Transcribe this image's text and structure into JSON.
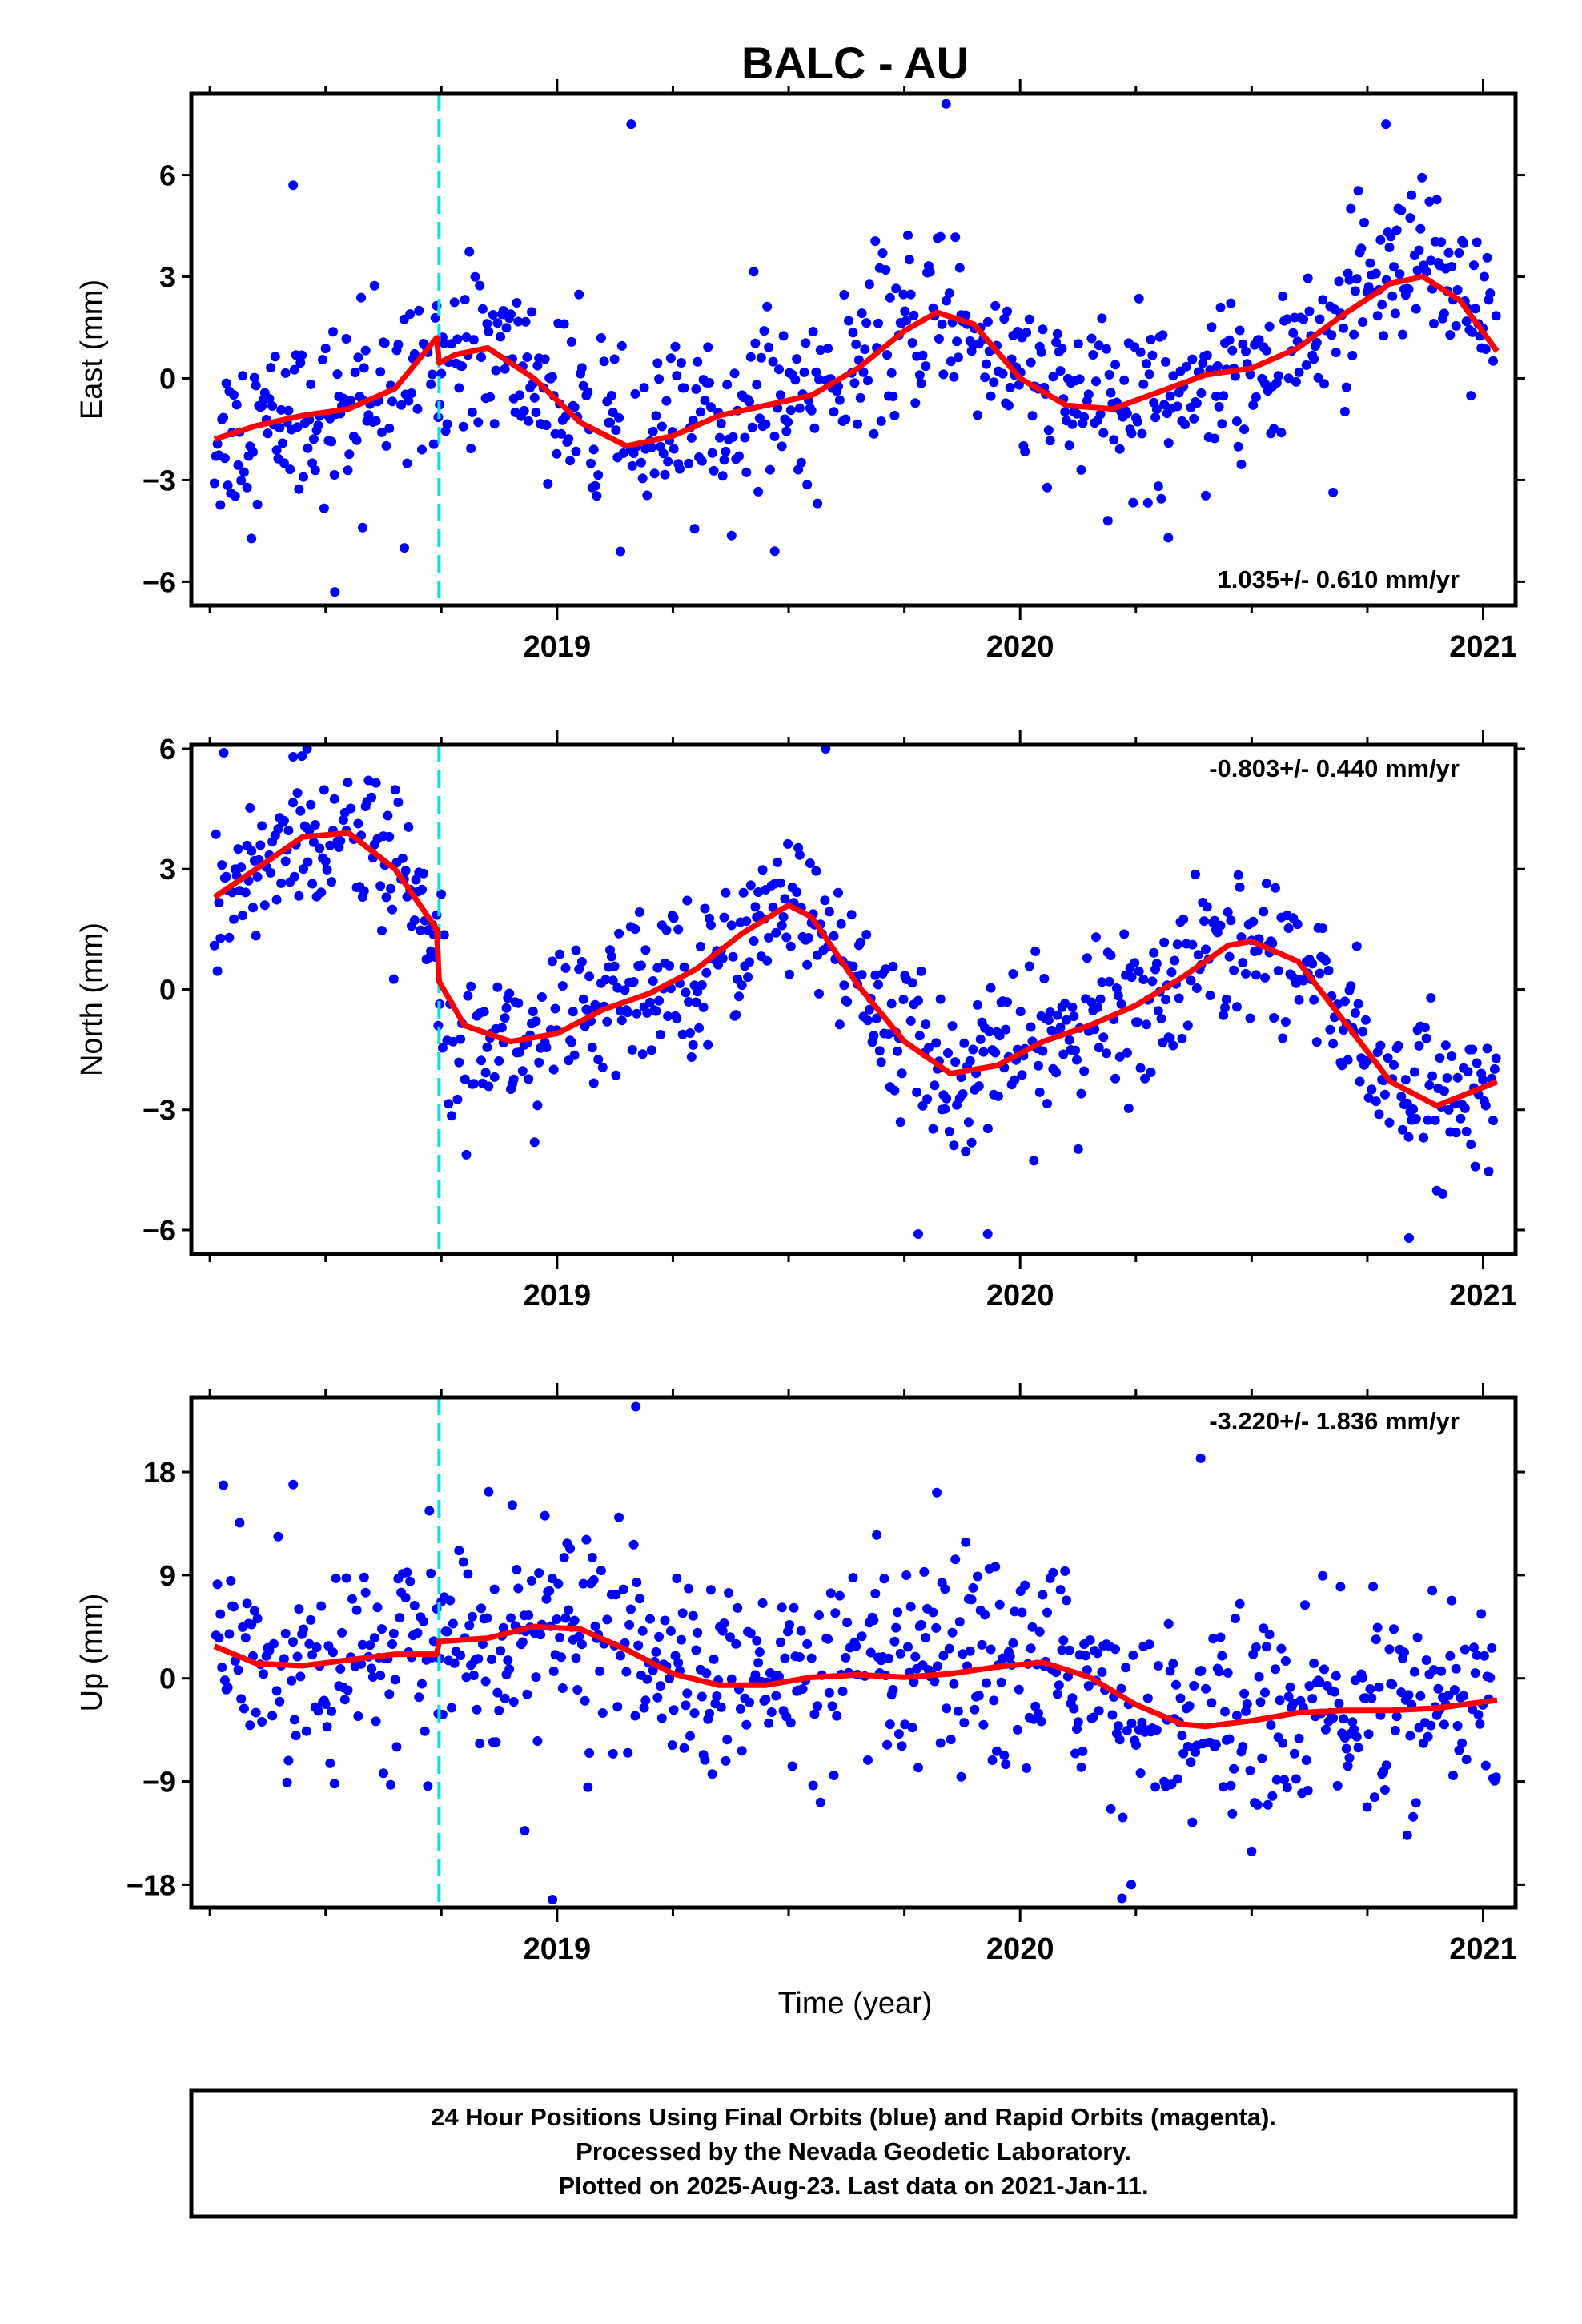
{
  "title": "BALC - AU",
  "xlabel": "Time (year)",
  "footer": {
    "line1": "24 Hour Positions Using Final Orbits (blue) and Rapid Orbits (magenta).",
    "line2": "Processed by the Nevada Geodetic Laboratory.",
    "line3": "Plotted on 2025-Aug-23. Last data on 2021-Jan-11."
  },
  "colors": {
    "points": "#0000ff",
    "fit": "#ff0000",
    "offset": "#00e5ee",
    "frame": "#000000"
  },
  "chart_data": [
    {
      "type": "scatter",
      "ylabel": "East (mm)",
      "rate": "1.035+/- 0.610 mm/yr",
      "xlim": [
        2018.21,
        2021.07
      ],
      "ylim": [
        -6.7,
        8.4
      ],
      "yticks": [
        -6,
        -3,
        0,
        3,
        6
      ],
      "xticks": [
        2019,
        2020,
        2021
      ],
      "offset_epoch": 2018.745,
      "fit": {
        "x": [
          2018.26,
          2018.35,
          2018.45,
          2018.55,
          2018.65,
          2018.74,
          2018.745,
          2018.78,
          2018.85,
          2018.95,
          2019.05,
          2019.15,
          2019.25,
          2019.35,
          2019.45,
          2019.55,
          2019.65,
          2019.75,
          2019.82,
          2019.9,
          2020.0,
          2020.1,
          2020.2,
          2020.3,
          2020.4,
          2020.5,
          2020.6,
          2020.7,
          2020.8,
          2020.87,
          2020.95,
          2021.03
        ],
        "y": [
          -1.8,
          -1.4,
          -1.1,
          -0.9,
          -0.3,
          1.2,
          0.45,
          0.7,
          0.9,
          0.0,
          -1.3,
          -2.0,
          -1.7,
          -1.1,
          -0.8,
          -0.5,
          0.3,
          1.4,
          1.95,
          1.6,
          0.0,
          -0.8,
          -0.9,
          -0.4,
          0.1,
          0.3,
          0.9,
          1.9,
          2.8,
          3.0,
          2.3,
          0.8
        ]
      },
      "points": {
        "x": [
          2018.52,
          2019.16,
          2019.84,
          2018.58,
          2019.47,
          2018.67,
          2020.32,
          2018.43,
          2020.79
        ],
        "y": [
          -6.3,
          7.5,
          8.1,
          -4.4,
          -5.1,
          -5.0,
          -4.7,
          5.7,
          7.5
        ]
      }
    },
    {
      "type": "scatter",
      "ylabel": "North (mm)",
      "rate": "-0.803+/- 0.440 mm/yr",
      "xlim": [
        2018.21,
        2021.07
      ],
      "ylim": [
        -6.6,
        6.1
      ],
      "yticks": [
        -6,
        -3,
        0,
        3,
        6
      ],
      "xticks": [
        2019,
        2020,
        2021
      ],
      "offset_epoch": 2018.745,
      "fit": {
        "x": [
          2018.26,
          2018.35,
          2018.45,
          2018.55,
          2018.65,
          2018.74,
          2018.745,
          2018.8,
          2018.9,
          2019.0,
          2019.1,
          2019.2,
          2019.3,
          2019.4,
          2019.5,
          2019.55,
          2019.65,
          2019.75,
          2019.85,
          2019.95,
          2020.05,
          2020.15,
          2020.25,
          2020.35,
          2020.45,
          2020.5,
          2020.6,
          2020.7,
          2020.8,
          2020.9,
          2021.03
        ],
        "y": [
          2.3,
          3.0,
          3.8,
          3.9,
          3.0,
          1.5,
          0.2,
          -0.9,
          -1.3,
          -1.1,
          -0.5,
          -0.1,
          0.5,
          1.4,
          2.1,
          1.8,
          0.1,
          -1.3,
          -2.1,
          -1.9,
          -1.3,
          -0.9,
          -0.4,
          0.3,
          1.1,
          1.2,
          0.7,
          -0.8,
          -2.3,
          -2.9,
          -2.3
        ]
      },
      "points": {
        "x": [
          2019.58,
          2018.46,
          2019.78,
          2019.93,
          2020.84,
          2018.28,
          2018.43
        ],
        "y": [
          6.0,
          6.0,
          -6.1,
          -6.1,
          -6.2,
          5.9,
          5.8
        ]
      }
    },
    {
      "type": "scatter",
      "ylabel": "Up (mm)",
      "rate": "-3.220+/- 1.836 mm/yr",
      "xlim": [
        2018.21,
        2021.07
      ],
      "ylim": [
        -20.0,
        24.5
      ],
      "yticks": [
        -18,
        -9,
        0,
        9,
        18
      ],
      "xticks": [
        2019,
        2020,
        2021
      ],
      "offset_epoch": 2018.745,
      "fit": {
        "x": [
          2018.26,
          2018.35,
          2018.45,
          2018.55,
          2018.65,
          2018.74,
          2018.745,
          2018.85,
          2018.95,
          2019.05,
          2019.15,
          2019.25,
          2019.35,
          2019.45,
          2019.55,
          2019.65,
          2019.75,
          2019.85,
          2019.95,
          2020.05,
          2020.15,
          2020.25,
          2020.35,
          2020.4,
          2020.5,
          2020.6,
          2020.7,
          2020.8,
          2020.9,
          2021.03
        ],
        "y": [
          2.8,
          1.3,
          1.1,
          1.6,
          2.1,
          2.1,
          3.2,
          3.5,
          4.5,
          4.3,
          2.5,
          0.4,
          -0.6,
          -0.6,
          0.1,
          0.3,
          0.1,
          0.4,
          1.0,
          1.4,
          0.1,
          -2.3,
          -4.0,
          -4.2,
          -3.7,
          -3.0,
          -2.8,
          -2.8,
          -2.6,
          -1.9
        ]
      },
      "points": {
        "x": [
          2019.17,
          2020.39,
          2018.99,
          2020.24,
          2020.22,
          2018.43,
          2018.93,
          2019.82
        ],
        "y": [
          23.7,
          19.2,
          -19.3,
          -18.0,
          -19.2,
          16.9,
          -13.3,
          16.2
        ]
      }
    }
  ]
}
